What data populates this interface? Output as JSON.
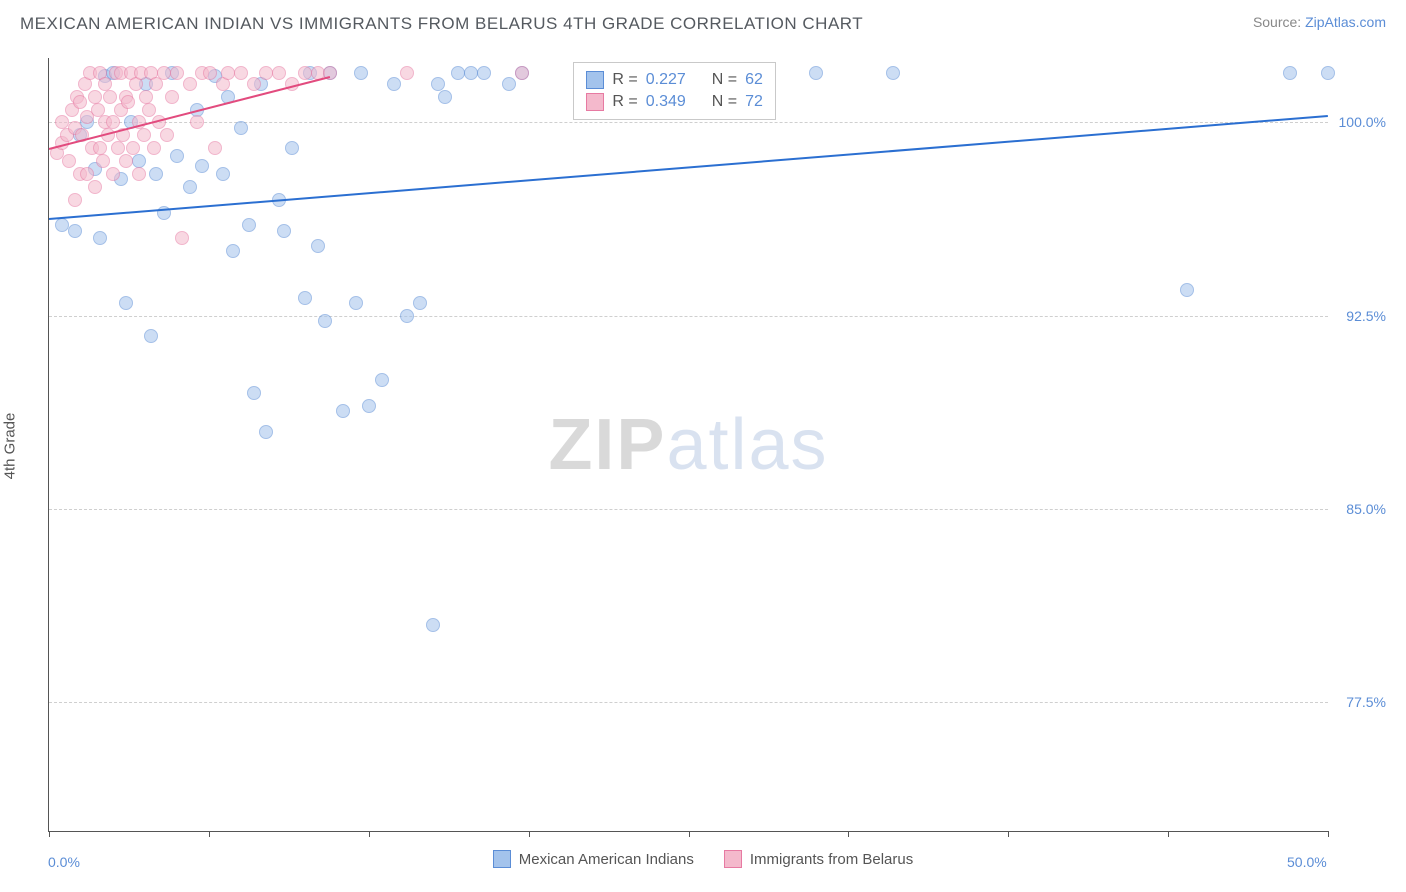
{
  "header": {
    "title": "MEXICAN AMERICAN INDIAN VS IMMIGRANTS FROM BELARUS 4TH GRADE CORRELATION CHART",
    "source_prefix": "Source: ",
    "source_link": "ZipAtlas.com"
  },
  "chart": {
    "type": "scatter",
    "y_axis_title": "4th Grade",
    "background_color": "#ffffff",
    "grid_color": "#cfcfcf",
    "axis_color": "#555555",
    "xlim": [
      0,
      50
    ],
    "ylim": [
      72.5,
      102.5
    ],
    "x_ticks": [
      0,
      6.25,
      12.5,
      18.75,
      25,
      31.25,
      37.5,
      43.75,
      50
    ],
    "x_tick_labels": {
      "0": "0.0%",
      "50": "50.0%"
    },
    "y_gridlines": [
      77.5,
      85.0,
      92.5,
      100.0
    ],
    "y_tick_labels": {
      "77.5": "77.5%",
      "85.0": "85.0%",
      "92.5": "92.5%",
      "100.0": "100.0%"
    },
    "marker_size": 14,
    "marker_opacity": 0.55,
    "watermark": {
      "part1": "ZIP",
      "part2": "atlas"
    },
    "series": [
      {
        "name": "Mexican American Indians",
        "key": "mexican",
        "color_fill": "#a3c3ec",
        "color_stroke": "#5b8dd6",
        "trend": {
          "x1": 0,
          "y1": 96.3,
          "x2": 50,
          "y2": 100.3,
          "color": "#2b6fd1",
          "width": 2
        },
        "points": [
          [
            0.5,
            96.0
          ],
          [
            1.0,
            95.8
          ],
          [
            1.2,
            99.5
          ],
          [
            1.5,
            100.0
          ],
          [
            1.8,
            98.2
          ],
          [
            2.0,
            95.5
          ],
          [
            2.2,
            101.8
          ],
          [
            2.5,
            101.9
          ],
          [
            2.8,
            97.8
          ],
          [
            3.0,
            93.0
          ],
          [
            3.2,
            100.0
          ],
          [
            3.5,
            98.5
          ],
          [
            3.8,
            101.5
          ],
          [
            4.0,
            91.7
          ],
          [
            4.2,
            98.0
          ],
          [
            4.5,
            96.5
          ],
          [
            4.8,
            101.9
          ],
          [
            5.0,
            98.7
          ],
          [
            5.5,
            97.5
          ],
          [
            5.8,
            100.5
          ],
          [
            6.0,
            98.3
          ],
          [
            6.5,
            101.8
          ],
          [
            6.8,
            98.0
          ],
          [
            7.0,
            101.0
          ],
          [
            7.2,
            95.0
          ],
          [
            7.5,
            99.8
          ],
          [
            7.8,
            96.0
          ],
          [
            8.0,
            89.5
          ],
          [
            8.3,
            101.5
          ],
          [
            8.5,
            88.0
          ],
          [
            9.0,
            97.0
          ],
          [
            9.2,
            95.8
          ],
          [
            9.5,
            99.0
          ],
          [
            10.0,
            93.2
          ],
          [
            10.2,
            101.9
          ],
          [
            10.5,
            95.2
          ],
          [
            10.8,
            92.3
          ],
          [
            11.0,
            101.9
          ],
          [
            11.5,
            88.8
          ],
          [
            12.0,
            93.0
          ],
          [
            12.2,
            101.9
          ],
          [
            12.5,
            89.0
          ],
          [
            13.0,
            90.0
          ],
          [
            13.5,
            101.5
          ],
          [
            14.0,
            92.5
          ],
          [
            14.5,
            93.0
          ],
          [
            15.0,
            80.5
          ],
          [
            15.2,
            101.5
          ],
          [
            15.5,
            101.0
          ],
          [
            16.0,
            101.9
          ],
          [
            16.5,
            101.9
          ],
          [
            17.0,
            101.9
          ],
          [
            18.0,
            101.5
          ],
          [
            18.5,
            101.9
          ],
          [
            22.0,
            101.9
          ],
          [
            24.5,
            101.8
          ],
          [
            26.0,
            101.9
          ],
          [
            30.0,
            101.9
          ],
          [
            33.0,
            101.9
          ],
          [
            44.5,
            93.5
          ],
          [
            48.5,
            101.9
          ],
          [
            50.0,
            101.9
          ]
        ]
      },
      {
        "name": "Immigrants from Belarus",
        "key": "belarus",
        "color_fill": "#f4b9cc",
        "color_stroke": "#e77aa2",
        "trend": {
          "x1": 0,
          "y1": 99.0,
          "x2": 11,
          "y2": 101.8,
          "color": "#e24b7e",
          "width": 2
        },
        "points": [
          [
            0.3,
            98.8
          ],
          [
            0.5,
            99.2
          ],
          [
            0.5,
            100.0
          ],
          [
            0.7,
            99.5
          ],
          [
            0.8,
            98.5
          ],
          [
            0.9,
            100.5
          ],
          [
            1.0,
            97.0
          ],
          [
            1.0,
            99.8
          ],
          [
            1.1,
            101.0
          ],
          [
            1.2,
            98.0
          ],
          [
            1.2,
            100.8
          ],
          [
            1.3,
            99.5
          ],
          [
            1.4,
            101.5
          ],
          [
            1.5,
            98.0
          ],
          [
            1.5,
            100.2
          ],
          [
            1.6,
            101.9
          ],
          [
            1.7,
            99.0
          ],
          [
            1.8,
            101.0
          ],
          [
            1.8,
            97.5
          ],
          [
            1.9,
            100.5
          ],
          [
            2.0,
            99.0
          ],
          [
            2.0,
            101.9
          ],
          [
            2.1,
            98.5
          ],
          [
            2.2,
            100.0
          ],
          [
            2.2,
            101.5
          ],
          [
            2.3,
            99.5
          ],
          [
            2.4,
            101.0
          ],
          [
            2.5,
            100.0
          ],
          [
            2.5,
            98.0
          ],
          [
            2.6,
            101.9
          ],
          [
            2.7,
            99.0
          ],
          [
            2.8,
            100.5
          ],
          [
            2.8,
            101.9
          ],
          [
            2.9,
            99.5
          ],
          [
            3.0,
            101.0
          ],
          [
            3.0,
            98.5
          ],
          [
            3.1,
            100.8
          ],
          [
            3.2,
            101.9
          ],
          [
            3.3,
            99.0
          ],
          [
            3.4,
            101.5
          ],
          [
            3.5,
            100.0
          ],
          [
            3.5,
            98.0
          ],
          [
            3.6,
            101.9
          ],
          [
            3.7,
            99.5
          ],
          [
            3.8,
            101.0
          ],
          [
            3.9,
            100.5
          ],
          [
            4.0,
            101.9
          ],
          [
            4.1,
            99.0
          ],
          [
            4.2,
            101.5
          ],
          [
            4.3,
            100.0
          ],
          [
            4.5,
            101.9
          ],
          [
            4.6,
            99.5
          ],
          [
            4.8,
            101.0
          ],
          [
            5.0,
            101.9
          ],
          [
            5.2,
            95.5
          ],
          [
            5.5,
            101.5
          ],
          [
            5.8,
            100.0
          ],
          [
            6.0,
            101.9
          ],
          [
            6.3,
            101.9
          ],
          [
            6.5,
            99.0
          ],
          [
            6.8,
            101.5
          ],
          [
            7.0,
            101.9
          ],
          [
            7.5,
            101.9
          ],
          [
            8.0,
            101.5
          ],
          [
            8.5,
            101.9
          ],
          [
            9.0,
            101.9
          ],
          [
            9.5,
            101.5
          ],
          [
            10.0,
            101.9
          ],
          [
            10.5,
            101.9
          ],
          [
            11.0,
            101.9
          ],
          [
            14.0,
            101.9
          ],
          [
            18.5,
            101.9
          ]
        ]
      }
    ],
    "stats_box": {
      "rows": [
        {
          "series_key": "mexican",
          "R_label": "R =",
          "R": "0.227",
          "N_label": "N =",
          "N": "62"
        },
        {
          "series_key": "belarus",
          "R_label": "R =",
          "R": "0.349",
          "N_label": "N =",
          "N": "72"
        }
      ]
    },
    "bottom_legend": [
      {
        "series_key": "mexican",
        "label": "Mexican American Indians"
      },
      {
        "series_key": "belarus",
        "label": "Immigrants from Belarus"
      }
    ]
  }
}
